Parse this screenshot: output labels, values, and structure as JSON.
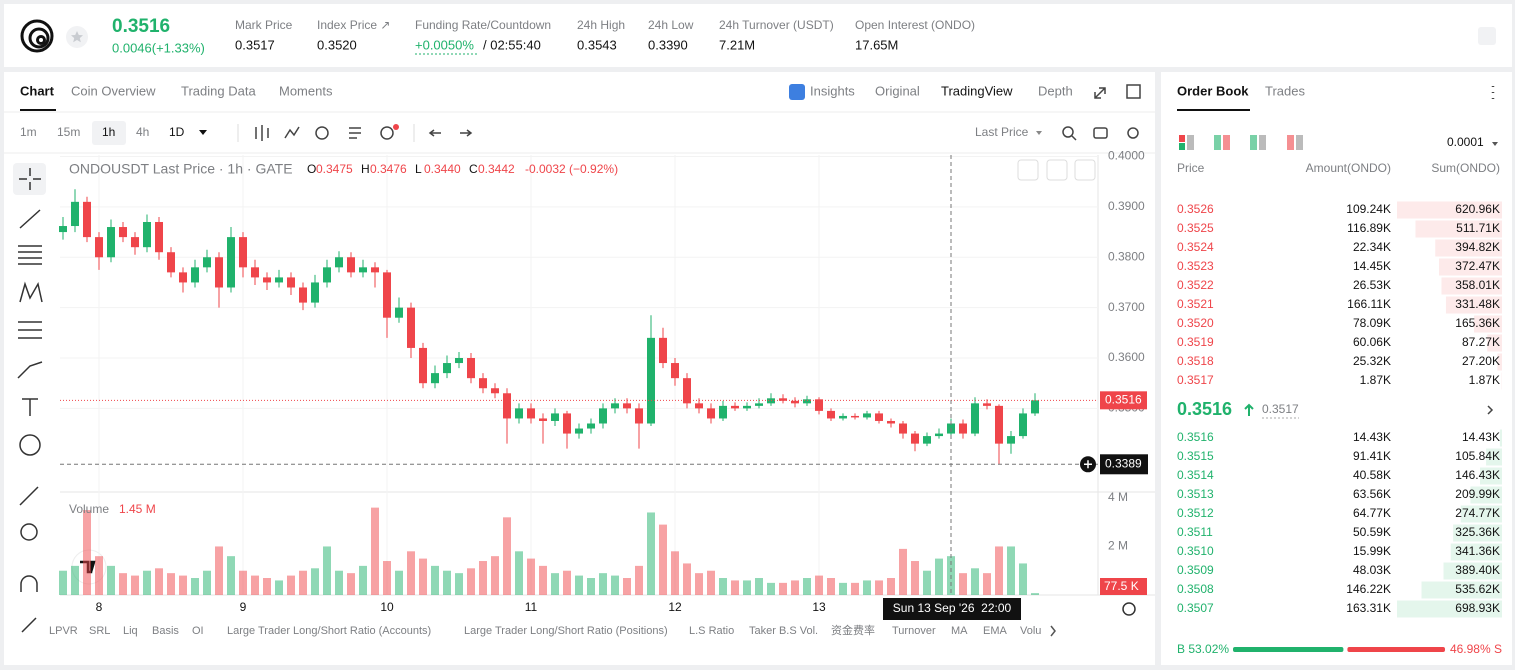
{
  "header": {
    "price": "0.3516",
    "change": "0.0046(+1.33%)",
    "stats": [
      {
        "label": "Mark Price",
        "value": "0.3517"
      },
      {
        "label": "Index Price ↗",
        "value": "0.3520"
      },
      {
        "label": "Funding Rate/Countdown",
        "value": "+0.0050%",
        "extra": "/ 02:55:40"
      },
      {
        "label": "24h High",
        "value": "0.3543"
      },
      {
        "label": "24h Low",
        "value": "0.3390"
      },
      {
        "label": "24h Turnover (USDT)",
        "value": "7.21M"
      },
      {
        "label": "Open Interest (ONDO)",
        "value": "17.65M"
      }
    ]
  },
  "chart_panel": {
    "tabs": [
      "Chart",
      "Coin Overview",
      "Trading Data",
      "Moments"
    ],
    "view_tabs": [
      "Insights",
      "Original",
      "TradingView",
      "Depth"
    ],
    "intervals": [
      "1m",
      "15m",
      "1h",
      "4h",
      "1D"
    ],
    "price_type": "Last Price"
  },
  "chart": {
    "type": "candlestick",
    "legend": "ONDOUSDT Last Price · 1h · GATE",
    "ohlc_legend": [
      {
        "key": "O",
        "value": "0.3475"
      },
      {
        "key": "H",
        "value": "0.3476"
      },
      {
        "key": "L",
        "value": "0.3440"
      },
      {
        "key": "C",
        "value": "0.3442"
      }
    ],
    "legend_change": "-0.0032 (−0.92%)",
    "x": [
      0,
      2,
      4,
      6,
      8,
      10,
      12,
      14,
      16,
      18,
      20,
      22,
      24,
      26,
      28,
      30,
      32,
      34,
      36,
      38,
      40,
      42,
      44,
      46,
      48,
      50,
      52,
      54,
      56,
      58,
      60,
      62,
      64,
      66,
      68,
      70,
      72,
      74,
      76,
      78,
      80,
      82,
      84,
      86,
      88,
      90,
      92,
      94,
      96,
      98,
      100,
      102,
      104,
      106,
      108,
      110,
      112,
      114,
      116,
      118,
      120,
      122,
      124,
      126,
      128,
      130,
      132,
      134,
      136,
      138,
      140,
      142,
      144,
      146,
      148,
      150,
      152,
      154,
      156,
      158,
      160,
      162
    ],
    "open": [
      0.385,
      0.3862,
      0.391,
      0.384,
      0.38,
      0.386,
      0.384,
      0.382,
      0.387,
      0.381,
      0.377,
      0.375,
      0.378,
      0.38,
      0.374,
      0.384,
      0.378,
      0.376,
      0.375,
      0.376,
      0.374,
      0.371,
      0.375,
      0.378,
      0.38,
      0.377,
      0.378,
      0.377,
      0.368,
      0.37,
      0.362,
      0.355,
      0.357,
      0.359,
      0.36,
      0.356,
      0.354,
      0.353,
      0.348,
      0.35,
      0.348,
      0.3475,
      0.349,
      0.345,
      0.346,
      0.347,
      0.35,
      0.351,
      0.35,
      0.347,
      0.364,
      0.359,
      0.356,
      0.351,
      0.35,
      0.348,
      0.3505,
      0.35,
      0.3505,
      0.351,
      0.352,
      0.3515,
      0.351,
      0.3518,
      0.3495,
      0.348,
      0.3485,
      0.3482,
      0.349,
      0.3475,
      0.347,
      0.345,
      0.343,
      0.3445,
      0.345,
      0.347,
      0.345,
      0.351,
      0.3505,
      0.343,
      0.3445,
      0.349
    ],
    "high": [
      0.388,
      0.3935,
      0.392,
      0.385,
      0.3875,
      0.387,
      0.385,
      0.3885,
      0.388,
      0.382,
      0.378,
      0.3795,
      0.3815,
      0.381,
      0.386,
      0.385,
      0.3795,
      0.377,
      0.3775,
      0.377,
      0.375,
      0.3765,
      0.3795,
      0.3812,
      0.381,
      0.3795,
      0.379,
      0.3775,
      0.372,
      0.371,
      0.363,
      0.3585,
      0.3605,
      0.3612,
      0.361,
      0.357,
      0.355,
      0.354,
      0.351,
      0.351,
      0.349,
      0.35,
      0.3495,
      0.347,
      0.348,
      0.351,
      0.352,
      0.352,
      0.351,
      0.3685,
      0.366,
      0.36,
      0.357,
      0.352,
      0.351,
      0.3515,
      0.3512,
      0.3512,
      0.352,
      0.353,
      0.3528,
      0.3522,
      0.3525,
      0.3522,
      0.35,
      0.349,
      0.349,
      0.3495,
      0.3495,
      0.348,
      0.3475,
      0.3455,
      0.3452,
      0.346,
      0.348,
      0.3478,
      0.3522,
      0.3518,
      0.3508,
      0.3455,
      0.35,
      0.353
    ],
    "low": [
      0.3835,
      0.385,
      0.383,
      0.3775,
      0.379,
      0.383,
      0.3805,
      0.381,
      0.3795,
      0.376,
      0.373,
      0.374,
      0.377,
      0.37,
      0.373,
      0.376,
      0.3745,
      0.3735,
      0.374,
      0.3725,
      0.3695,
      0.37,
      0.374,
      0.377,
      0.376,
      0.376,
      0.374,
      0.364,
      0.367,
      0.36,
      0.354,
      0.354,
      0.356,
      0.358,
      0.355,
      0.353,
      0.352,
      0.343,
      0.347,
      0.347,
      0.343,
      0.3465,
      0.342,
      0.344,
      0.345,
      0.346,
      0.349,
      0.349,
      0.342,
      0.3465,
      0.358,
      0.3545,
      0.35,
      0.349,
      0.347,
      0.3475,
      0.3495,
      0.3495,
      0.35,
      0.3505,
      0.351,
      0.3502,
      0.3505,
      0.3488,
      0.3475,
      0.3476,
      0.3478,
      0.3478,
      0.347,
      0.3462,
      0.344,
      0.3415,
      0.3425,
      0.344,
      0.3445,
      0.344,
      0.3445,
      0.3498,
      0.3389,
      0.341,
      0.344,
      0.3485
    ],
    "close": [
      0.3862,
      0.391,
      0.384,
      0.38,
      0.386,
      0.384,
      0.382,
      0.387,
      0.381,
      0.377,
      0.375,
      0.378,
      0.38,
      0.374,
      0.384,
      0.378,
      0.376,
      0.375,
      0.376,
      0.374,
      0.371,
      0.375,
      0.378,
      0.38,
      0.377,
      0.378,
      0.377,
      0.368,
      0.37,
      0.362,
      0.355,
      0.357,
      0.359,
      0.36,
      0.356,
      0.354,
      0.353,
      0.348,
      0.35,
      0.348,
      0.3475,
      0.349,
      0.345,
      0.346,
      0.347,
      0.35,
      0.351,
      0.35,
      0.347,
      0.364,
      0.359,
      0.356,
      0.351,
      0.35,
      0.348,
      0.3505,
      0.35,
      0.3505,
      0.351,
      0.352,
      0.3515,
      0.351,
      0.3518,
      0.3495,
      0.348,
      0.3485,
      0.3482,
      0.349,
      0.3475,
      0.347,
      0.345,
      0.343,
      0.3445,
      0.345,
      0.347,
      0.345,
      0.351,
      0.3505,
      0.343,
      0.3445,
      0.349,
      0.3516
    ],
    "volume": [
      1.0,
      1.2,
      3.5,
      1.6,
      1.2,
      0.9,
      0.8,
      1.0,
      1.1,
      0.9,
      0.8,
      0.7,
      1.0,
      2.0,
      1.6,
      1.0,
      0.8,
      0.7,
      0.6,
      0.8,
      1.0,
      1.1,
      2.0,
      1.0,
      0.9,
      1.2,
      3.6,
      1.4,
      1.0,
      1.8,
      1.5,
      1.2,
      1.0,
      0.9,
      1.1,
      1.4,
      1.6,
      3.2,
      1.8,
      1.5,
      1.2,
      0.9,
      1.0,
      0.8,
      0.7,
      0.9,
      0.8,
      0.7,
      1.2,
      3.4,
      2.9,
      1.8,
      1.3,
      0.9,
      1.0,
      0.7,
      0.6,
      0.6,
      0.7,
      0.5,
      0.5,
      0.6,
      0.7,
      0.8,
      0.7,
      0.5,
      0.5,
      0.6,
      0.6,
      0.7,
      1.9,
      1.4,
      1.0,
      1.5,
      1.6,
      0.9,
      1.1,
      0.9,
      2.0,
      2.0,
      1.3,
      0.0775
    ],
    "volume_label": "Volume",
    "volume_legend": "1.45 M",
    "volume_last_label": "77.5 K",
    "up_color": "#20b26c",
    "down_color": "#ef454a",
    "xlim": [
      -0.5,
      172.5
    ],
    "xticks": [
      {
        "value": 6,
        "label": "8"
      },
      {
        "value": 30,
        "label": "9"
      },
      {
        "value": 54,
        "label": "10"
      },
      {
        "value": 78,
        "label": "11"
      },
      {
        "value": 102,
        "label": "12"
      },
      {
        "value": 126,
        "label": "13"
      }
    ],
    "ylim": [
      0.3334,
      0.4003
    ],
    "yticks": [
      {
        "value": 0.4,
        "label": "0.4000"
      },
      {
        "value": 0.39,
        "label": "0.3900"
      },
      {
        "value": 0.38,
        "label": "0.3800"
      },
      {
        "value": 0.37,
        "label": "0.3700"
      },
      {
        "value": 0.36,
        "label": "0.3600"
      },
      {
        "value": 0.35,
        "label": "0.3500"
      }
    ],
    "vlim": [
      0,
      4.12
    ],
    "vticks": [
      {
        "value": 4,
        "label": "4 M"
      },
      {
        "value": 2,
        "label": "2 M"
      }
    ],
    "grid": true,
    "last_price": 0.3516,
    "crosshair": {
      "x": 148,
      "time": "Sun 13 Sep '26  22:00",
      "price": 0.3389
    }
  },
  "bottom_tabs": [
    "LPVR",
    "SRL",
    "Liq",
    "Basis",
    "OI",
    "Large Trader Long/Short Ratio (Accounts)",
    "Large Trader Long/Short Ratio (Positions)",
    "L.S Ratio",
    "Taker B.S Vol.",
    "资金费率",
    "Turnover",
    "MA",
    "EMA",
    "Volu"
  ],
  "order_book": {
    "tabs": [
      "Order Book",
      "Trades"
    ],
    "precision": "0.0001",
    "columns": [
      "Price",
      "Amount(ONDO)",
      "Sum(ONDO)"
    ],
    "asks": [
      {
        "price": "0.3526",
        "amount": "109.24K",
        "sum": 620.96,
        "sum_label": "620.96K"
      },
      {
        "price": "0.3525",
        "amount": "116.89K",
        "sum": 511.71,
        "sum_label": "511.71K"
      },
      {
        "price": "0.3524",
        "amount": "22.34K",
        "sum": 394.82,
        "sum_label": "394.82K"
      },
      {
        "price": "0.3523",
        "amount": "14.45K",
        "sum": 372.47,
        "sum_label": "372.47K"
      },
      {
        "price": "0.3522",
        "amount": "26.53K",
        "sum": 358.01,
        "sum_label": "358.01K"
      },
      {
        "price": "0.3521",
        "amount": "166.11K",
        "sum": 331.48,
        "sum_label": "331.48K"
      },
      {
        "price": "0.3520",
        "amount": "78.09K",
        "sum": 165.36,
        "sum_label": "165.36K"
      },
      {
        "price": "0.3519",
        "amount": "60.06K",
        "sum": 87.27,
        "sum_label": "87.27K"
      },
      {
        "price": "0.3518",
        "amount": "25.32K",
        "sum": 27.2,
        "sum_label": "27.20K"
      },
      {
        "price": "0.3517",
        "amount": "1.87K",
        "sum": 1.87,
        "sum_label": "1.87K"
      }
    ],
    "mid_price": "0.3516",
    "mark_price": "0.3517",
    "bids": [
      {
        "price": "0.3516",
        "amount": "14.43K",
        "sum": 14.43,
        "sum_label": "14.43K"
      },
      {
        "price": "0.3515",
        "amount": "91.41K",
        "sum": 105.84,
        "sum_label": "105.84K"
      },
      {
        "price": "0.3514",
        "amount": "40.58K",
        "sum": 146.43,
        "sum_label": "146.43K"
      },
      {
        "price": "0.3513",
        "amount": "63.56K",
        "sum": 209.99,
        "sum_label": "209.99K"
      },
      {
        "price": "0.3512",
        "amount": "64.77K",
        "sum": 274.77,
        "sum_label": "274.77K"
      },
      {
        "price": "0.3511",
        "amount": "50.59K",
        "sum": 325.36,
        "sum_label": "325.36K"
      },
      {
        "price": "0.3510",
        "amount": "15.99K",
        "sum": 341.36,
        "sum_label": "341.36K"
      },
      {
        "price": "0.3509",
        "amount": "48.03K",
        "sum": 389.4,
        "sum_label": "389.40K"
      },
      {
        "price": "0.3508",
        "amount": "146.22K",
        "sum": 535.62,
        "sum_label": "535.62K"
      },
      {
        "price": "0.3507",
        "amount": "163.31K",
        "sum": 698.93,
        "sum_label": "698.93K"
      }
    ],
    "buy_ratio": 53.02,
    "buy_label": "B 53.02%",
    "sell_ratio": 46.98,
    "sell_label": "46.98% S"
  }
}
